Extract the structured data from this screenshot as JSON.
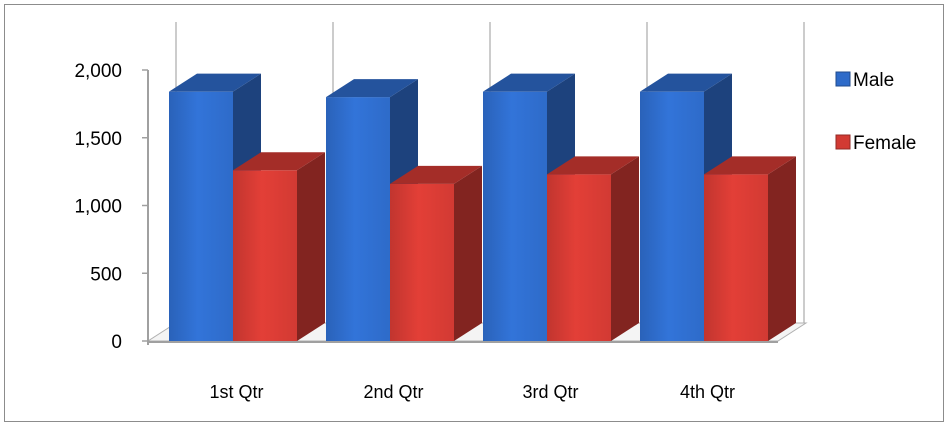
{
  "chart_data": {
    "type": "bar",
    "categories": [
      "1st Qtr",
      "2nd Qtr",
      "3rd Qtr",
      "4th Qtr"
    ],
    "series": [
      {
        "name": "Male",
        "values": [
          1840,
          1800,
          1840,
          1840
        ],
        "color": "#2e6bc9"
      },
      {
        "name": "Female",
        "values": [
          1260,
          1160,
          1230,
          1230
        ],
        "color": "#d23a33"
      }
    ],
    "ylim": [
      0,
      2000
    ],
    "yticks": [
      {
        "value": 0,
        "label": "0"
      },
      {
        "value": 500,
        "label": "500"
      },
      {
        "value": 1000,
        "label": "1,000"
      },
      {
        "value": 1500,
        "label": "1,500"
      },
      {
        "value": 2000,
        "label": "2,000"
      }
    ],
    "title": "",
    "xlabel": "",
    "ylabel": "",
    "grid": "vertical",
    "legend_position": "right",
    "style": "3d-clustered-column"
  }
}
